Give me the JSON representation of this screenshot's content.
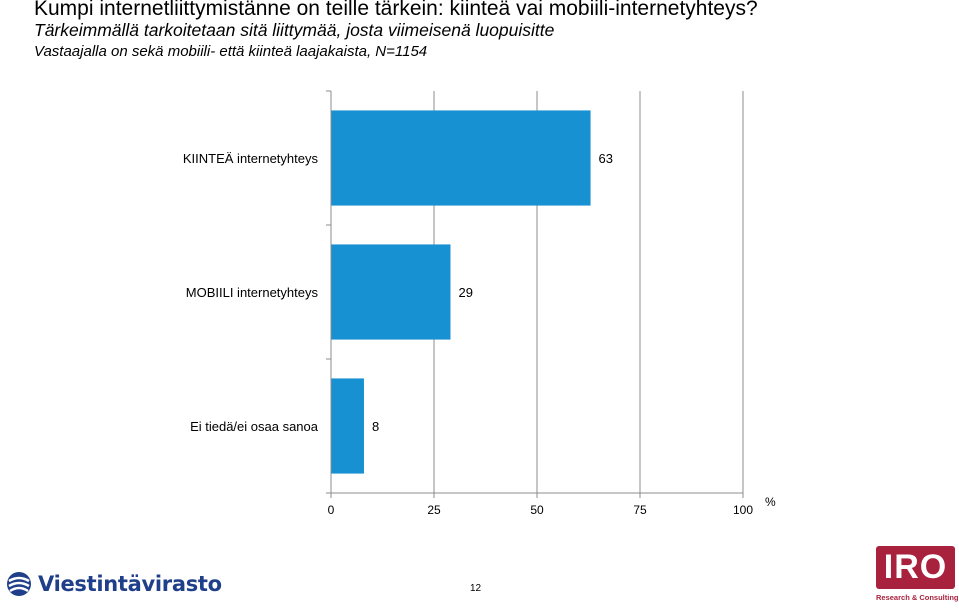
{
  "header": {
    "title": "Kumpi internetliittymistänne on teille tärkein: kiinteä vai mobiili-internetyhteys?",
    "subtitle1": "Tärkeimmällä tarkoitetaan sitä liittymää, josta viimeisenä luopuisitte",
    "subtitle2": "Vastaajalla on sekä  mobiili- että  kiinteä laajakaista,  N=1154"
  },
  "chart_data": {
    "type": "bar",
    "orientation": "horizontal",
    "categories": [
      "KIINTEÄ internetyhteys",
      "MOBIILI internetyhteys",
      "Ei tiedä/ei osaa sanoa"
    ],
    "values": [
      63,
      29,
      8
    ],
    "xlim": [
      0,
      100
    ],
    "xticks": [
      "0",
      "25",
      "50",
      "75",
      "100"
    ],
    "xunit": "%",
    "grid": true,
    "bar_color": "#1791d2"
  },
  "footer": {
    "logo_text": "Viestintävirasto",
    "page_number": "12",
    "iro_text": "IRO",
    "iro_sub": "Research & Consulting"
  }
}
